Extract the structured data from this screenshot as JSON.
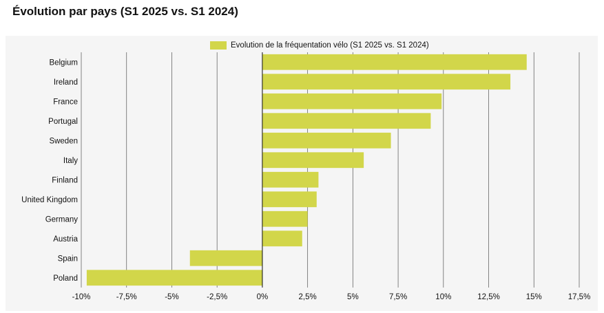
{
  "title": "Évolution par pays (S1 2025 vs. S1 2024)",
  "chart_data": {
    "type": "bar",
    "orientation": "horizontal",
    "title": "Évolution par pays (S1 2025 vs. S1 2024)",
    "xlabel": "",
    "ylabel": "",
    "categories": [
      "Belgium",
      "Ireland",
      "France",
      "Portugal",
      "Sweden",
      "Italy",
      "Finland",
      "United Kingdom",
      "Germany",
      "Austria",
      "Spain",
      "Poland"
    ],
    "series": [
      {
        "name": "Evolution de la fréquentation vélo (S1 2025 vs. S1 2024)",
        "color": "#d2d64a",
        "values": [
          14.6,
          13.7,
          9.9,
          9.3,
          7.1,
          5.6,
          3.1,
          3.0,
          2.5,
          2.2,
          -4.0,
          -9.7
        ]
      }
    ],
    "xlim": [
      -10,
      17.5
    ],
    "xticks": [
      -10,
      -7.5,
      -5,
      -2.5,
      0,
      2.5,
      5,
      7.5,
      10,
      12.5,
      15,
      17.5
    ],
    "xtick_labels": [
      "-10%",
      "-7,5%",
      "-5%",
      "-2,5%",
      "0%",
      "2,5%",
      "5%",
      "7,5%",
      "10%",
      "12,5%",
      "15%",
      "17,5%"
    ],
    "grid": true,
    "legend_position": "top-center"
  }
}
